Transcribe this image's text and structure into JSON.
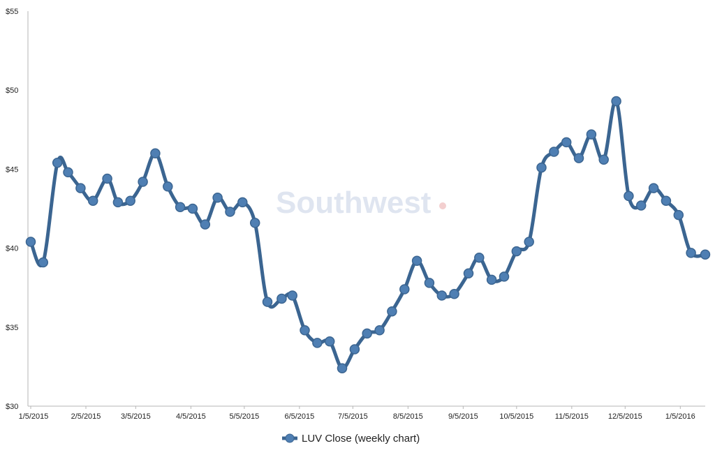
{
  "chart_data": {
    "type": "line",
    "title": "",
    "xlabel": "",
    "ylabel": "",
    "ylim": [
      30,
      55
    ],
    "y_ticks": [
      "$30",
      "$35",
      "$40",
      "$45",
      "$50",
      "$55"
    ],
    "x_tick_labels": [
      "1/5/2015",
      "2/5/2015",
      "3/5/2015",
      "4/5/2015",
      "5/5/2015",
      "6/5/2015",
      "7/5/2015",
      "8/5/2015",
      "9/5/2015",
      "10/5/2015",
      "11/5/2015",
      "12/5/2015",
      "1/5/2016"
    ],
    "grid": false,
    "legend_position": "bottom",
    "series": [
      {
        "name": "LUV Close (weekly chart)",
        "color": "#3b6591",
        "x": [
          "2015-01-05",
          "2015-01-12",
          "2015-01-20",
          "2015-01-26",
          "2015-02-02",
          "2015-02-09",
          "2015-02-17",
          "2015-02-23",
          "2015-03-02",
          "2015-03-09",
          "2015-03-16",
          "2015-03-23",
          "2015-03-30",
          "2015-04-06",
          "2015-04-13",
          "2015-04-20",
          "2015-04-27",
          "2015-05-04",
          "2015-05-11",
          "2015-05-18",
          "2015-05-26",
          "2015-06-01",
          "2015-06-08",
          "2015-06-15",
          "2015-06-22",
          "2015-06-29",
          "2015-07-06",
          "2015-07-13",
          "2015-07-20",
          "2015-07-27",
          "2015-08-03",
          "2015-08-10",
          "2015-08-17",
          "2015-08-24",
          "2015-08-31",
          "2015-09-08",
          "2015-09-14",
          "2015-09-21",
          "2015-09-28",
          "2015-10-05",
          "2015-10-12",
          "2015-10-19",
          "2015-10-26",
          "2015-11-02",
          "2015-11-09",
          "2015-11-16",
          "2015-11-23",
          "2015-11-30",
          "2015-12-07",
          "2015-12-14",
          "2015-12-21",
          "2015-12-28",
          "2016-01-04",
          "2016-01-11",
          "2016-01-19"
        ],
        "values": [
          40.4,
          39.1,
          45.4,
          44.8,
          43.8,
          43.0,
          44.4,
          42.9,
          43.0,
          44.2,
          46.0,
          43.9,
          42.6,
          42.5,
          41.5,
          43.2,
          42.3,
          42.9,
          41.6,
          36.6,
          36.8,
          37.0,
          34.8,
          34.0,
          34.1,
          32.4,
          33.6,
          34.6,
          34.8,
          36.0,
          37.4,
          39.2,
          37.8,
          37.0,
          37.1,
          38.4,
          39.4,
          38.0,
          38.2,
          39.8,
          40.4,
          45.1,
          46.1,
          46.7,
          45.7,
          47.2,
          45.6,
          49.3,
          43.3,
          42.7,
          43.8,
          43.0,
          42.1,
          39.7,
          39.6
        ]
      }
    ],
    "watermark": "Southwest"
  }
}
